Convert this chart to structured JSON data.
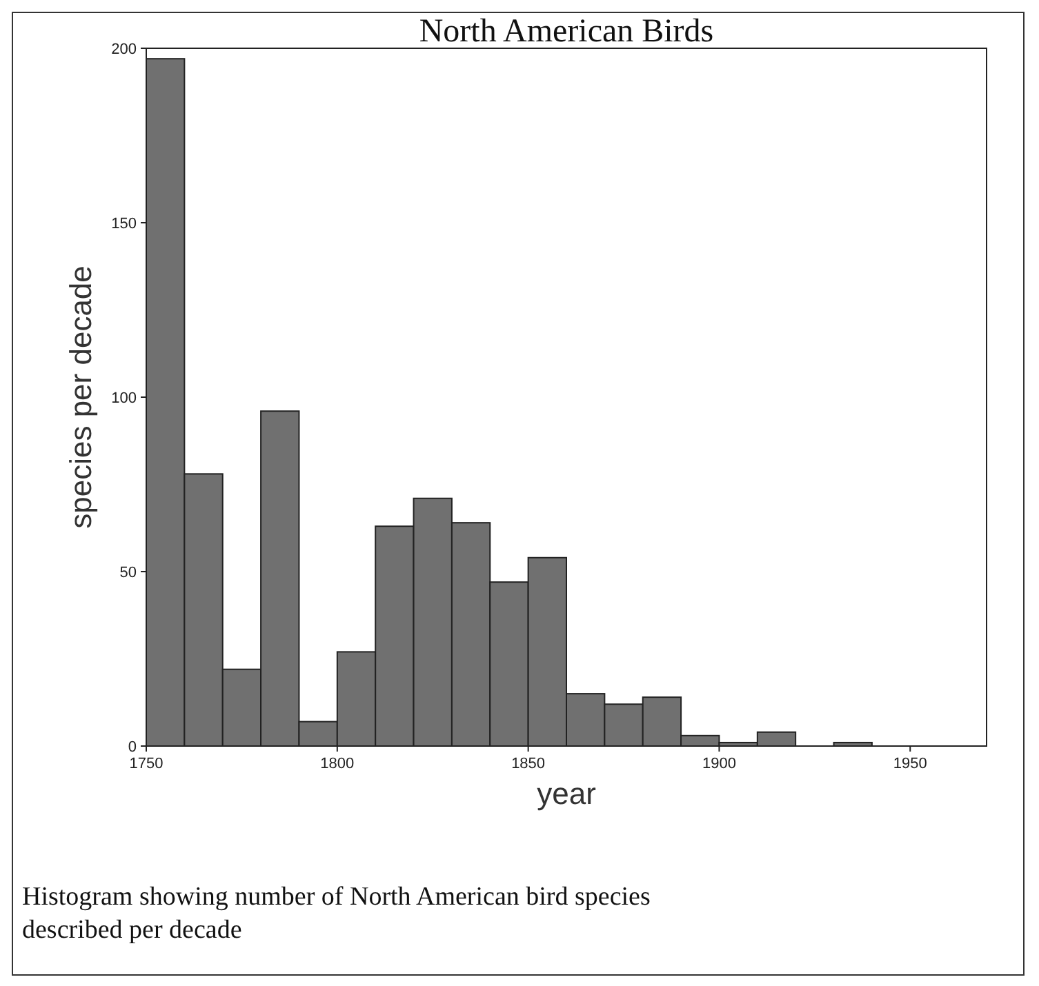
{
  "chart_data": {
    "type": "histogram",
    "title": "North American Birds",
    "xlabel": "year",
    "ylabel": "species per decade",
    "bins": [
      1750,
      1760,
      1770,
      1780,
      1790,
      1800,
      1810,
      1820,
      1830,
      1840,
      1850,
      1860,
      1870,
      1880,
      1890,
      1900,
      1910,
      1920,
      1930,
      1940
    ],
    "values": [
      197,
      78,
      22,
      96,
      7,
      27,
      63,
      71,
      64,
      47,
      54,
      15,
      12,
      14,
      3,
      1,
      4,
      0,
      1
    ],
    "color": "#707070",
    "xlim": [
      1750,
      1970
    ],
    "ylim": [
      0,
      200
    ],
    "xticks": [
      1750,
      1800,
      1850,
      1900,
      1950
    ],
    "yticks": [
      0,
      50,
      100,
      150,
      200
    ],
    "grid": false,
    "annotations": [
      "Histogram showing number of North American bird species described per decade"
    ]
  }
}
